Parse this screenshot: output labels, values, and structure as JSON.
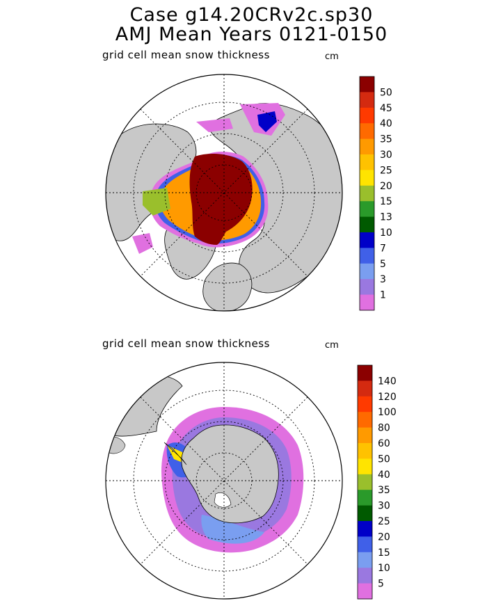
{
  "title": {
    "line1": "Case g14.20CRv2c.sp30",
    "line2": "AMJ Mean    Years 0121-0150"
  },
  "panels": [
    {
      "id": "north",
      "label": "grid cell mean snow thickness",
      "unit": "cm",
      "colorbar": {
        "levels": [
          "50",
          "45",
          "40",
          "35",
          "30",
          "25",
          "20",
          "15",
          "13",
          "10",
          "7",
          "5",
          "3",
          "1"
        ],
        "colors": [
          "#8b0000",
          "#d42a10",
          "#ff3a00",
          "#ff6a00",
          "#ff9a00",
          "#ffc200",
          "#ffe400",
          "#9abf2c",
          "#2a9a2a",
          "#005a00",
          "#0000c8",
          "#4060e8",
          "#7a9ef0",
          "#9a78e0",
          "#e070e0"
        ]
      }
    },
    {
      "id": "south",
      "label": "grid cell mean snow thickness",
      "unit": "cm",
      "colorbar": {
        "levels": [
          "140",
          "120",
          "100",
          "80",
          "60",
          "50",
          "40",
          "35",
          "30",
          "25",
          "20",
          "15",
          "10",
          "5"
        ],
        "colors": [
          "#8b0000",
          "#d42a10",
          "#ff3a00",
          "#ff6a00",
          "#ff9a00",
          "#ffc200",
          "#ffe400",
          "#9abf2c",
          "#2a9a2a",
          "#005a00",
          "#0000c8",
          "#4060e8",
          "#7a9ef0",
          "#9a78e0",
          "#e070e0"
        ]
      }
    }
  ]
}
